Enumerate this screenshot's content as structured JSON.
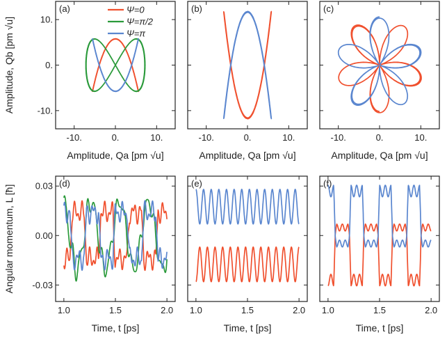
{
  "colors": {
    "red": "#f0502e",
    "green": "#2a9a3a",
    "blue": "#5a86cf",
    "axis": "#222222"
  },
  "legend": {
    "items": [
      {
        "label": "Ψ=0",
        "color": "#f0502e"
      },
      {
        "label": "Ψ=π/2",
        "color": "#2a9a3a"
      },
      {
        "label": "Ψ=π",
        "color": "#5a86cf"
      }
    ]
  },
  "labels": {
    "top_xlabel": "Amplitude, Qa [pm √u]",
    "top_ylabel": "Amplitude, Qb [pm √u]",
    "bottom_xlabel": "Time, t [ps]",
    "bottom_ylabel": "Angular momentum, L [ħ]"
  },
  "chart_data": [
    {
      "panel": "(a)",
      "type": "line",
      "xlabel": "Amplitude, Qa [pm √u]",
      "ylabel": "Amplitude, Qb [pm √u]",
      "xlim": [
        -14.5,
        14.5
      ],
      "ylim": [
        -14,
        14
      ],
      "xticks": [
        -10,
        0,
        10
      ],
      "yticks": [
        -10,
        0,
        10
      ],
      "xticklabels": [
        "-10.",
        "0.",
        "10."
      ],
      "yticklabels": [
        "-10.",
        "0.",
        "10."
      ],
      "series": [
        {
          "name": "Ψ=0",
          "kind": "lissajous",
          "A": 5.6,
          "B": 5.8,
          "ratio": 2,
          "phase": 0
        },
        {
          "name": "Ψ=π/2",
          "kind": "lissajous",
          "A": 7.2,
          "B": 5.8,
          "ratio": 2,
          "phase": 1.5708
        },
        {
          "name": "Ψ=π",
          "kind": "lissajous",
          "A": 5.6,
          "B": 5.8,
          "ratio": 2,
          "phase": 3.1416
        }
      ]
    },
    {
      "panel": "(b)",
      "type": "line",
      "xlabel": "Amplitude, Qa [pm √u]",
      "xlim": [
        -14.5,
        14.5
      ],
      "ylim": [
        -14,
        14
      ],
      "xticks": [
        -10,
        0,
        10
      ],
      "yticks": [
        -10,
        0,
        10
      ],
      "xticklabels": [
        "-10.",
        "0.",
        "10."
      ],
      "series": [
        {
          "name": "Ψ=0",
          "kind": "cusp",
          "A": 5.8,
          "B": 11.8,
          "sign": -1
        },
        {
          "name": "Ψ=π",
          "kind": "cusp",
          "A": 5.8,
          "B": 11.8,
          "sign": 1
        }
      ]
    },
    {
      "panel": "(c)",
      "type": "line",
      "xlabel": "Amplitude, Qa [pm √u]",
      "xlim": [
        -14.5,
        14.5
      ],
      "ylim": [
        -14,
        14
      ],
      "xticks": [
        -10,
        0,
        10
      ],
      "yticks": [
        -10,
        0,
        10
      ],
      "xticklabels": [
        "-10.",
        "0.",
        "10."
      ],
      "series": [
        {
          "name": "Ψ=0",
          "kind": "rose",
          "R": 10.6,
          "petals": 5,
          "phase": 3.1416
        },
        {
          "name": "Ψ=π",
          "kind": "rose",
          "R": 10.6,
          "petals": 5,
          "phase": 0
        }
      ]
    },
    {
      "panel": "(d)",
      "type": "line",
      "xlabel": "Time, t [ps]",
      "ylabel": "Angular momentum, L [ħ]",
      "xlim": [
        0.92,
        2.08
      ],
      "ylim": [
        -0.04,
        0.036
      ],
      "xticks": [
        1.0,
        1.5,
        2.0
      ],
      "yticks": [
        -0.03,
        0.0,
        0.03
      ],
      "xticklabels": [
        "1.0",
        "1.5",
        "2.0"
      ],
      "yticklabels": [
        "-0.03",
        "0.00",
        "0.03"
      ],
      "series": [
        {
          "name": "Ψ=0",
          "kind": "beat",
          "amp": 0.0165,
          "base": 0.0,
          "carrier": 3.6,
          "env": 1.0,
          "hf": 0.003,
          "sign": -1
        },
        {
          "name": "Ψ=π/2",
          "kind": "beat",
          "amp": 0.024,
          "base": 0.0,
          "carrier": 3.6,
          "env": 0.0,
          "hf": 0.006,
          "sign": 1
        },
        {
          "name": "Ψ=π",
          "kind": "beat",
          "amp": 0.0165,
          "base": 0.0,
          "carrier": 3.6,
          "env": 1.0,
          "hf": 0.003,
          "sign": 1
        }
      ]
    },
    {
      "panel": "(e)",
      "type": "line",
      "xlabel": "Time, t [ps]",
      "xlim": [
        0.92,
        2.08
      ],
      "ylim": [
        -0.04,
        0.036
      ],
      "xticks": [
        1.0,
        1.5,
        2.0
      ],
      "yticks": [
        -0.03,
        0.0,
        0.03
      ],
      "xticklabels": [
        "1.0",
        "1.5",
        "2.0"
      ],
      "series": [
        {
          "name": "Ψ=0",
          "kind": "osc",
          "mean": -0.0175,
          "amp": 0.0105,
          "cycles": 13.5,
          "sign": -1
        },
        {
          "name": "Ψ=π",
          "kind": "osc",
          "mean": 0.0175,
          "amp": 0.0105,
          "cycles": 13.5,
          "sign": 1
        }
      ]
    },
    {
      "panel": "(f)",
      "type": "line",
      "xlabel": "Time, t [ps]",
      "xlim": [
        0.92,
        2.08
      ],
      "ylim": [
        -0.04,
        0.036
      ],
      "xticks": [
        1.0,
        1.5,
        2.0
      ],
      "yticks": [
        -0.03,
        0.0,
        0.03
      ],
      "xticklabels": [
        "1.0",
        "1.5",
        "2.0"
      ],
      "series": [
        {
          "name": "Ψ=0",
          "kind": "square",
          "amp": 0.027,
          "cycles": 3.6,
          "ripple": 0.0035,
          "sign": -1
        },
        {
          "name": "Ψ=π",
          "kind": "square",
          "amp": 0.027,
          "cycles": 3.6,
          "ripple": 0.0035,
          "sign": 1
        }
      ]
    }
  ]
}
